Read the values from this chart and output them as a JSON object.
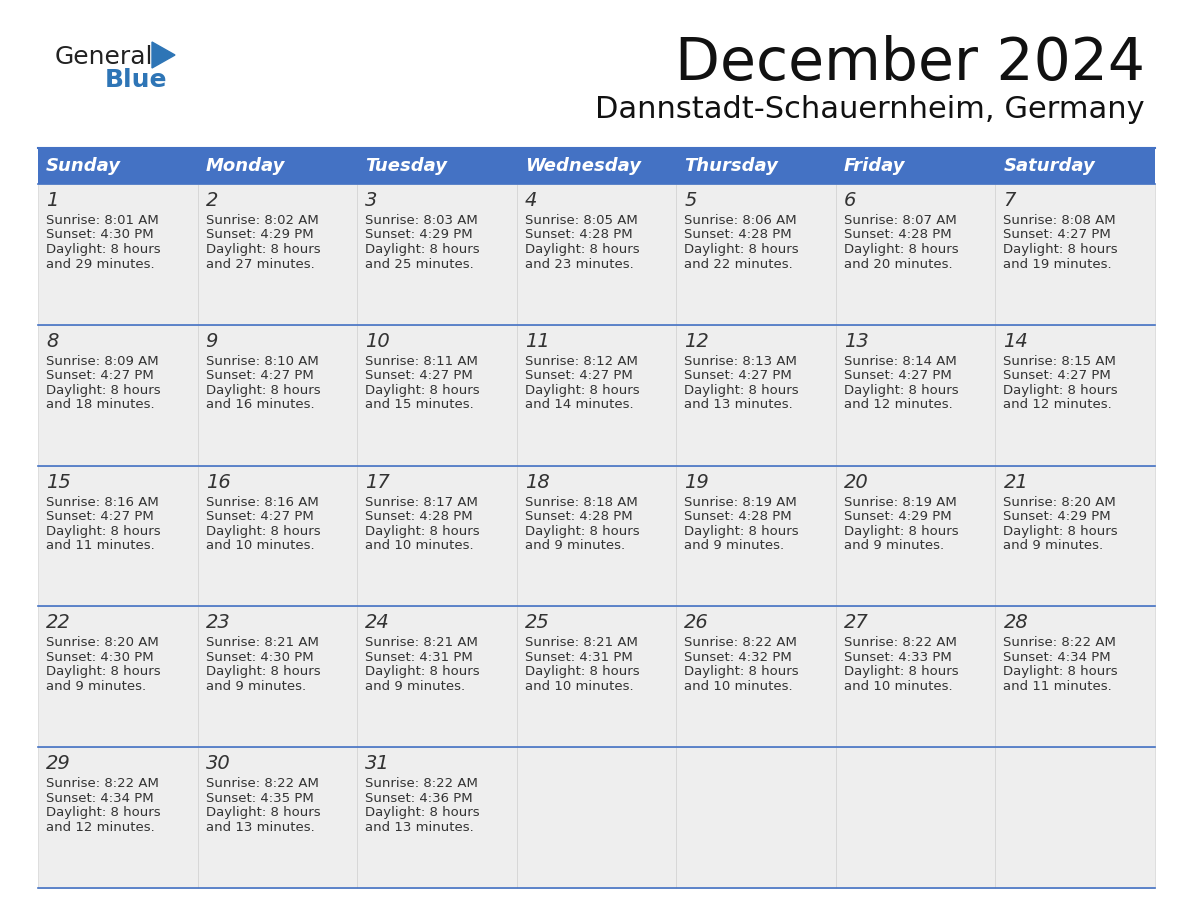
{
  "title": "December 2024",
  "subtitle": "Dannstadt-Schauernheim, Germany",
  "header_bg": "#4472C4",
  "header_text_color": "#FFFFFF",
  "header_days": [
    "Sunday",
    "Monday",
    "Tuesday",
    "Wednesday",
    "Thursday",
    "Friday",
    "Saturday"
  ],
  "row_bg": "#EEEEEE",
  "empty_cell_bg": "#EEEEEE",
  "cell_border_color": "#4472C4",
  "text_color": "#333333",
  "logo_general_color": "#222222",
  "logo_blue_color": "#2E75B6",
  "logo_triangle_color": "#2E75B6",
  "weeks": [
    [
      {
        "day": 1,
        "sunrise": "8:01 AM",
        "sunset": "4:30 PM",
        "daylight_suffix": "29 minutes."
      },
      {
        "day": 2,
        "sunrise": "8:02 AM",
        "sunset": "4:29 PM",
        "daylight_suffix": "27 minutes."
      },
      {
        "day": 3,
        "sunrise": "8:03 AM",
        "sunset": "4:29 PM",
        "daylight_suffix": "25 minutes."
      },
      {
        "day": 4,
        "sunrise": "8:05 AM",
        "sunset": "4:28 PM",
        "daylight_suffix": "23 minutes."
      },
      {
        "day": 5,
        "sunrise": "8:06 AM",
        "sunset": "4:28 PM",
        "daylight_suffix": "22 minutes."
      },
      {
        "day": 6,
        "sunrise": "8:07 AM",
        "sunset": "4:28 PM",
        "daylight_suffix": "20 minutes."
      },
      {
        "day": 7,
        "sunrise": "8:08 AM",
        "sunset": "4:27 PM",
        "daylight_suffix": "19 minutes."
      }
    ],
    [
      {
        "day": 8,
        "sunrise": "8:09 AM",
        "sunset": "4:27 PM",
        "daylight_suffix": "18 minutes."
      },
      {
        "day": 9,
        "sunrise": "8:10 AM",
        "sunset": "4:27 PM",
        "daylight_suffix": "16 minutes."
      },
      {
        "day": 10,
        "sunrise": "8:11 AM",
        "sunset": "4:27 PM",
        "daylight_suffix": "15 minutes."
      },
      {
        "day": 11,
        "sunrise": "8:12 AM",
        "sunset": "4:27 PM",
        "daylight_suffix": "14 minutes."
      },
      {
        "day": 12,
        "sunrise": "8:13 AM",
        "sunset": "4:27 PM",
        "daylight_suffix": "13 minutes."
      },
      {
        "day": 13,
        "sunrise": "8:14 AM",
        "sunset": "4:27 PM",
        "daylight_suffix": "12 minutes."
      },
      {
        "day": 14,
        "sunrise": "8:15 AM",
        "sunset": "4:27 PM",
        "daylight_suffix": "12 minutes."
      }
    ],
    [
      {
        "day": 15,
        "sunrise": "8:16 AM",
        "sunset": "4:27 PM",
        "daylight_suffix": "11 minutes."
      },
      {
        "day": 16,
        "sunrise": "8:16 AM",
        "sunset": "4:27 PM",
        "daylight_suffix": "10 minutes."
      },
      {
        "day": 17,
        "sunrise": "8:17 AM",
        "sunset": "4:28 PM",
        "daylight_suffix": "10 minutes."
      },
      {
        "day": 18,
        "sunrise": "8:18 AM",
        "sunset": "4:28 PM",
        "daylight_suffix": "9 minutes."
      },
      {
        "day": 19,
        "sunrise": "8:19 AM",
        "sunset": "4:28 PM",
        "daylight_suffix": "9 minutes."
      },
      {
        "day": 20,
        "sunrise": "8:19 AM",
        "sunset": "4:29 PM",
        "daylight_suffix": "9 minutes."
      },
      {
        "day": 21,
        "sunrise": "8:20 AM",
        "sunset": "4:29 PM",
        "daylight_suffix": "9 minutes."
      }
    ],
    [
      {
        "day": 22,
        "sunrise": "8:20 AM",
        "sunset": "4:30 PM",
        "daylight_suffix": "9 minutes."
      },
      {
        "day": 23,
        "sunrise": "8:21 AM",
        "sunset": "4:30 PM",
        "daylight_suffix": "9 minutes."
      },
      {
        "day": 24,
        "sunrise": "8:21 AM",
        "sunset": "4:31 PM",
        "daylight_suffix": "9 minutes."
      },
      {
        "day": 25,
        "sunrise": "8:21 AM",
        "sunset": "4:31 PM",
        "daylight_suffix": "10 minutes."
      },
      {
        "day": 26,
        "sunrise": "8:22 AM",
        "sunset": "4:32 PM",
        "daylight_suffix": "10 minutes."
      },
      {
        "day": 27,
        "sunrise": "8:22 AM",
        "sunset": "4:33 PM",
        "daylight_suffix": "10 minutes."
      },
      {
        "day": 28,
        "sunrise": "8:22 AM",
        "sunset": "4:34 PM",
        "daylight_suffix": "11 minutes."
      }
    ],
    [
      {
        "day": 29,
        "sunrise": "8:22 AM",
        "sunset": "4:34 PM",
        "daylight_suffix": "12 minutes."
      },
      {
        "day": 30,
        "sunrise": "8:22 AM",
        "sunset": "4:35 PM",
        "daylight_suffix": "13 minutes."
      },
      {
        "day": 31,
        "sunrise": "8:22 AM",
        "sunset": "4:36 PM",
        "daylight_suffix": "13 minutes."
      },
      null,
      null,
      null,
      null
    ]
  ]
}
